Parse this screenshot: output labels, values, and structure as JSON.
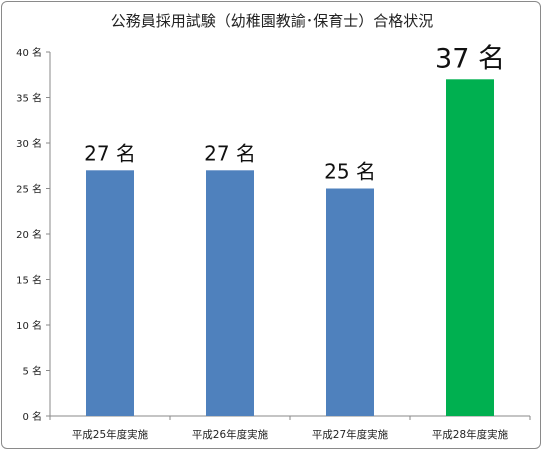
{
  "chart_data": {
    "type": "bar",
    "title": "公務員採用試験（幼稚園教諭･保育士）合格状況",
    "xlabel": "",
    "ylabel": "",
    "categories": [
      "平成25年度実施",
      "平成26年度実施",
      "平成27年度実施",
      "平成28年度実施"
    ],
    "values": [
      27,
      27,
      25,
      37
    ],
    "data_labels": [
      "27 名",
      "27 名",
      "25 名",
      "37 名"
    ],
    "ylim": [
      0,
      40
    ],
    "yticks": [
      0,
      5,
      10,
      15,
      20,
      25,
      30,
      35,
      40
    ],
    "ytick_labels": [
      "0 名",
      "5 名",
      "10 名",
      "15 名",
      "20 名",
      "25 名",
      "30 名",
      "35 名",
      "40 名"
    ],
    "bar_colors": [
      "#4f81bd",
      "#4f81bd",
      "#4f81bd",
      "#00b050"
    ],
    "grid": false,
    "legend": "none"
  }
}
